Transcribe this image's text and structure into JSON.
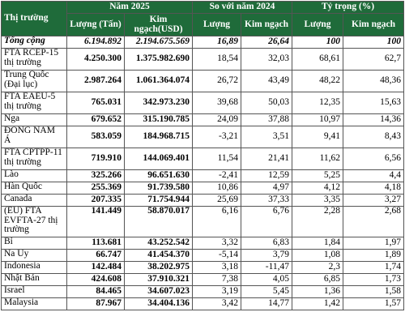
{
  "header": {
    "market": "Thị trường",
    "year2025": "Năm 2025",
    "compare2024": "So với năm 2024",
    "share": "Tỷ trọng (%)",
    "qty_tan": "Lượng (Tấn)",
    "value_usd": "Kim ngạch(USD)",
    "qty": "Lượng",
    "value": "Kim ngạch"
  },
  "rows": [
    {
      "market": "Tổng cộng",
      "qty": "6.194.892",
      "value": "2.194.675.569",
      "cmp_qty": "16,89",
      "cmp_value": "26,64",
      "share_qty": "100",
      "share_value": "100"
    },
    {
      "market": "FTA RCEP-15 thị trường",
      "qty": "4.250.300",
      "value": "1.375.982.690",
      "cmp_qty": "18,54",
      "cmp_value": "32,03",
      "share_qty": "68,61",
      "share_value": "62,7"
    },
    {
      "market": "Trung Quốc (Đại lục)",
      "qty": "2.987.264",
      "value": "1.061.364.074",
      "cmp_qty": "26,72",
      "cmp_value": "43,49",
      "share_qty": "48,22",
      "share_value": "48,36"
    },
    {
      "market": "FTA EAEU-5 thị trường",
      "qty": "765.031",
      "value": "342.973.230",
      "cmp_qty": "39,68",
      "cmp_value": "50,03",
      "share_qty": "12,35",
      "share_value": "15,63"
    },
    {
      "market": "Nga",
      "qty": "679.652",
      "value": "315.190.785",
      "cmp_qty": "24,09",
      "cmp_value": "37,88",
      "share_qty": "10,97",
      "share_value": "14,36"
    },
    {
      "market": "ĐÔNG NAM Á",
      "qty": "583.059",
      "value": "184.968.715",
      "cmp_qty": "-3,21",
      "cmp_value": "3,51",
      "share_qty": "9,41",
      "share_value": "8,43"
    },
    {
      "market": "FTA CPTPP-11 thị trường",
      "qty": "719.910",
      "value": "144.069.401",
      "cmp_qty": "11,54",
      "cmp_value": "21,41",
      "share_qty": "11,62",
      "share_value": "6,56"
    },
    {
      "market": "Lào",
      "qty": "325.266",
      "value": "96.651.630",
      "cmp_qty": "-2,41",
      "cmp_value": "12,59",
      "share_qty": "5,25",
      "share_value": "4,4"
    },
    {
      "market": "Hàn Quốc",
      "qty": "255.369",
      "value": "91.739.580",
      "cmp_qty": "10,86",
      "cmp_value": "4,97",
      "share_qty": "4,12",
      "share_value": "4,18"
    },
    {
      "market": "Canada",
      "qty": "207.335",
      "value": "71.754.944",
      "cmp_qty": "25,69",
      "cmp_value": "37,33",
      "share_qty": "3,35",
      "share_value": "3,27"
    },
    {
      "market": "(EU) FTA EVFTA-27 thị trường",
      "qty": "141.449",
      "value": "58.870.017",
      "cmp_qty": "6,16",
      "cmp_value": "6,76",
      "share_qty": "2,28",
      "share_value": "2,68"
    },
    {
      "market": "Bỉ",
      "qty": "113.681",
      "value": "43.252.542",
      "cmp_qty": "3,32",
      "cmp_value": "6,83",
      "share_qty": "1,84",
      "share_value": "1,97"
    },
    {
      "market": "Na Uy",
      "qty": "66.747",
      "value": "41.454.370",
      "cmp_qty": "-5,14",
      "cmp_value": "3,79",
      "share_qty": "1,08",
      "share_value": "1,89"
    },
    {
      "market": "Indonesia",
      "qty": "142.484",
      "value": "38.202.975",
      "cmp_qty": "3,18",
      "cmp_value": "-11,47",
      "share_qty": "2,3",
      "share_value": "1,74"
    },
    {
      "market": "Nhật Bản",
      "qty": "424.608",
      "value": "37.910.321",
      "cmp_qty": "7,38",
      "cmp_value": "4,05",
      "share_qty": "6,85",
      "share_value": "1,73"
    },
    {
      "market": "Israel",
      "qty": "84.465",
      "value": "34.607.023",
      "cmp_qty": "3,19",
      "cmp_value": "5,45",
      "share_qty": "1,36",
      "share_value": "1,58"
    },
    {
      "market": "Malaysia",
      "qty": "87.967",
      "value": "34.404.136",
      "cmp_qty": "3,42",
      "cmp_value": "14,77",
      "share_qty": "1,42",
      "share_value": "1,57"
    }
  ]
}
